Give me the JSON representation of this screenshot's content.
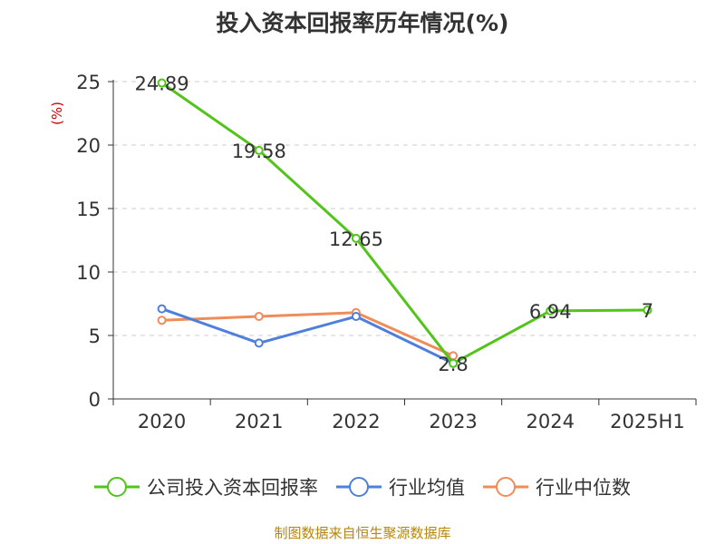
{
  "title": "投入资本回报率历年情况(%)",
  "source": "制图数据来自恒生聚源数据库",
  "chart_data": {
    "type": "line",
    "ylabel": "(%)",
    "ylim": [
      0,
      25
    ],
    "yticks": [
      0,
      5,
      10,
      15,
      20,
      25
    ],
    "categories": [
      "2020",
      "2021",
      "2022",
      "2023",
      "2024",
      "2025H1"
    ],
    "grid": true,
    "legend_position": "bottom",
    "series": [
      {
        "name": "公司投入资本回报率",
        "color": "#52c41a",
        "values": [
          24.89,
          19.58,
          12.65,
          2.8,
          6.94,
          7
        ],
        "labels": [
          "24.89",
          "19.58",
          "12.65",
          "2.8",
          "6.94",
          "7"
        ]
      },
      {
        "name": "行业均值",
        "color": "#4e7fdc",
        "values": [
          7.1,
          4.4,
          6.5,
          2.8,
          null,
          null
        ]
      },
      {
        "name": "行业中位数",
        "color": "#f08c5a",
        "values": [
          6.2,
          6.5,
          6.8,
          3.4,
          null,
          null
        ]
      }
    ]
  }
}
